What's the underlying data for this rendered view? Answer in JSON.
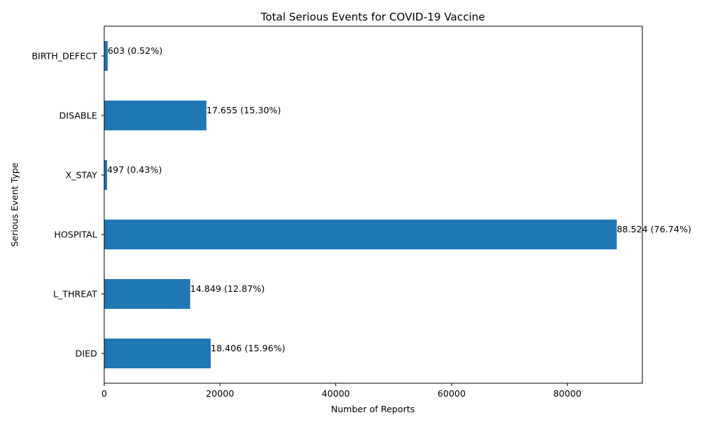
{
  "chart_data": {
    "type": "bar",
    "orientation": "horizontal",
    "title": "Total Serious Events for COVID-19 Vaccine",
    "xlabel": "Number of Reports",
    "ylabel": "Serious Event Type",
    "categories": [
      "DIED",
      "L_THREAT",
      "HOSPITAL",
      "X_STAY",
      "DISABLE",
      "BIRTH_DEFECT"
    ],
    "values": [
      18406,
      14849,
      88524,
      497,
      17655,
      603
    ],
    "data_labels": [
      "18.406 (15.96%)",
      "14.849 (12.87%)",
      "88.524 (76.74%)",
      "497 (0.43%)",
      "17.655 (15.30%)",
      "603 (0.52%)"
    ],
    "xlim": [
      0,
      92950
    ],
    "xticks": [
      0,
      20000,
      40000,
      60000,
      80000
    ],
    "xtick_labels": [
      "0",
      "20000",
      "40000",
      "60000",
      "80000"
    ],
    "grid": false,
    "bar_color": "#1f77b4"
  }
}
